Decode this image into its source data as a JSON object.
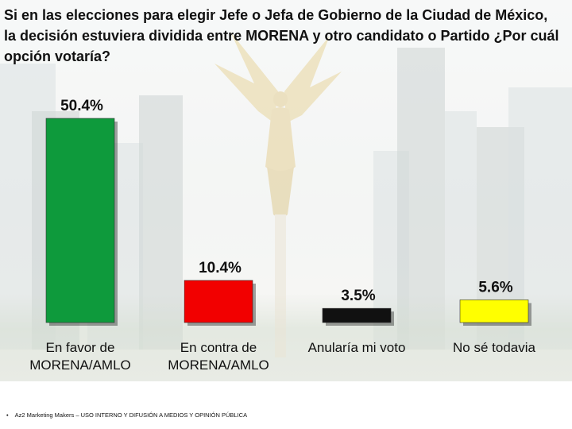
{
  "title": "Si en las elecciones para elegir Jefe o Jefa de Gobierno de la Ciudad de México, la decisión estuviera dividida entre MORENA y otro candidato o Partido ¿Por cuál opción votaría?",
  "footer": "Az2 Marketing Makers – USO INTERNO Y DIFUSIÓN A MEDIOS Y OPINIÓN PÚBLICA",
  "chart_data": {
    "type": "bar",
    "categories": [
      [
        "En favor de",
        "MORENA/AMLO"
      ],
      [
        "En contra de",
        "MORENA/AMLO"
      ],
      [
        "Anularía mi voto"
      ],
      [
        "No sé todavia"
      ]
    ],
    "values": [
      50.4,
      10.4,
      3.5,
      5.6
    ],
    "labels": [
      "50.4%",
      "10.4%",
      "3.5%",
      "5.6%"
    ],
    "colors": [
      "#0e9a3c",
      "#f20000",
      "#111111",
      "#ffff00"
    ],
    "ylim": [
      0,
      50.4
    ],
    "grid": false,
    "legend": "none"
  }
}
